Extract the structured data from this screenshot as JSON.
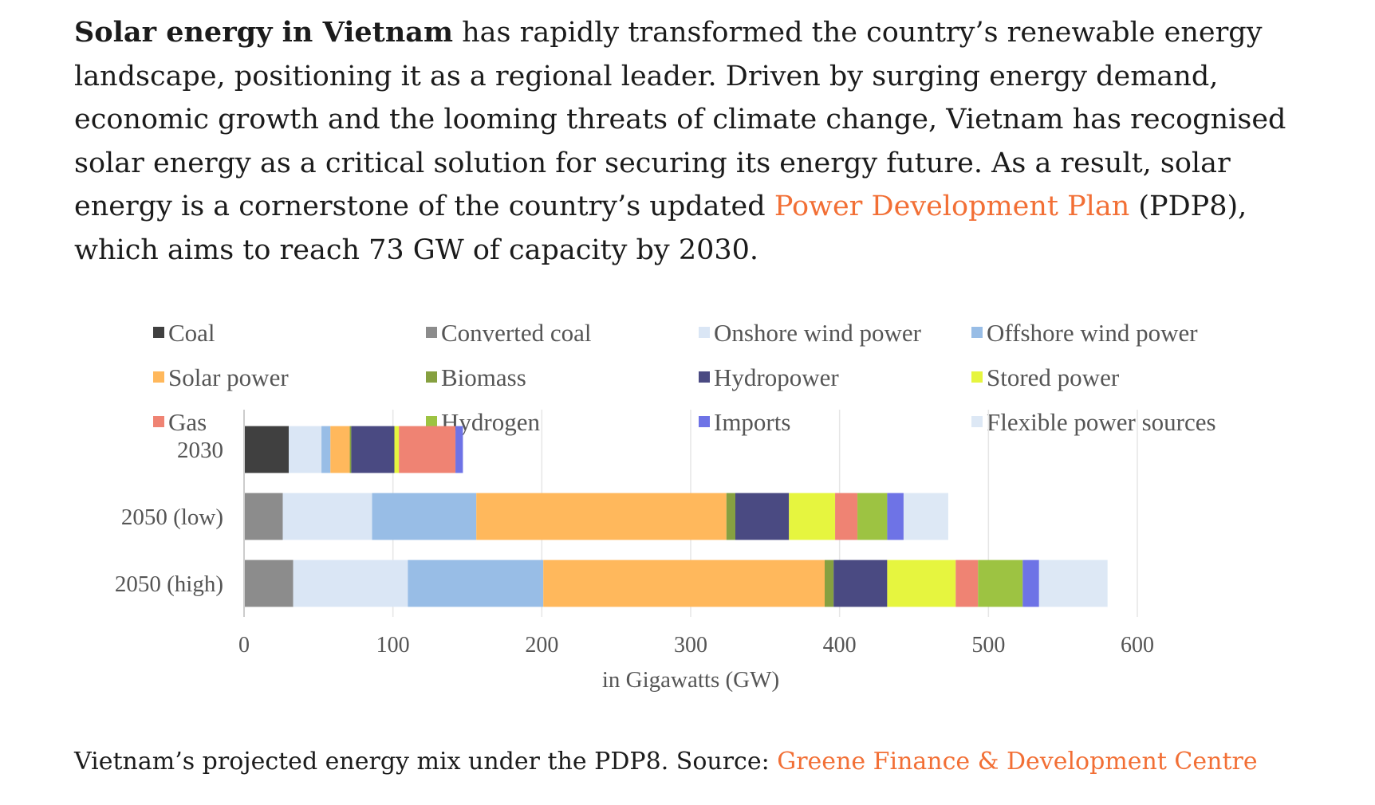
{
  "article": {
    "lead_bold": "Solar energy in Vietnam",
    "text_before_link": " has rapidly transformed the country’s renewable energy landscape, positioning it as a regional leader. Driven by surging energy demand, economic growth and the looming threats of climate change, Vietnam has recognised solar energy as a critical solution for securing its energy future. As a result, solar energy is a cornerstone of the country’s updated ",
    "link_text": "Power Development Plan",
    "text_after_link": " (PDP8), which aims to reach 73 GW of capacity by 2030."
  },
  "caption": {
    "text": "Vietnam’s projected energy mix under the PDP8. Source: ",
    "link_text": "Greene Finance & Development Centre"
  },
  "colors": {
    "link": "#f26f35",
    "text": "#1b1b1b",
    "chart_text": "#555555",
    "grid": "#e6e6e6"
  },
  "chart_data": {
    "type": "bar",
    "orientation": "horizontal",
    "stacked": true,
    "title": "",
    "xlabel": "in Gigawatts (GW)",
    "ylabel": "",
    "xlim": [
      0,
      600
    ],
    "xticks": [
      0,
      100,
      200,
      300,
      400,
      500,
      600
    ],
    "grid": true,
    "legend_position": "top",
    "categories": [
      "2030",
      "2050 (low)",
      "2050 (high)"
    ],
    "series": [
      {
        "name": "Coal",
        "color": "#404040",
        "values": [
          30,
          0,
          0
        ]
      },
      {
        "name": "Converted coal",
        "color": "#8c8c8c",
        "values": [
          0,
          26,
          33
        ]
      },
      {
        "name": "Onshore wind power",
        "color": "#dae6f5",
        "values": [
          22,
          60,
          77
        ]
      },
      {
        "name": "Offshore wind power",
        "color": "#98bde6",
        "values": [
          6,
          70,
          91
        ]
      },
      {
        "name": "Solar power",
        "color": "#ffb85c",
        "values": [
          13,
          168,
          189
        ]
      },
      {
        "name": "Biomass",
        "color": "#86a040",
        "values": [
          1,
          6,
          6
        ]
      },
      {
        "name": "Hydropower",
        "color": "#4a4a82",
        "values": [
          29,
          36,
          36
        ]
      },
      {
        "name": "Stored power",
        "color": "#e6f53f",
        "values": [
          3,
          31,
          46
        ]
      },
      {
        "name": "Gas",
        "color": "#ef8373",
        "values": [
          38,
          15,
          15
        ]
      },
      {
        "name": "Hydrogen",
        "color": "#9dc342",
        "values": [
          0,
          20,
          30
        ]
      },
      {
        "name": "Imports",
        "color": "#6e73e6",
        "values": [
          5,
          11,
          11
        ]
      },
      {
        "name": "Flexible power sources",
        "color": "#dde8f5",
        "values": [
          0,
          30,
          46
        ]
      }
    ]
  }
}
